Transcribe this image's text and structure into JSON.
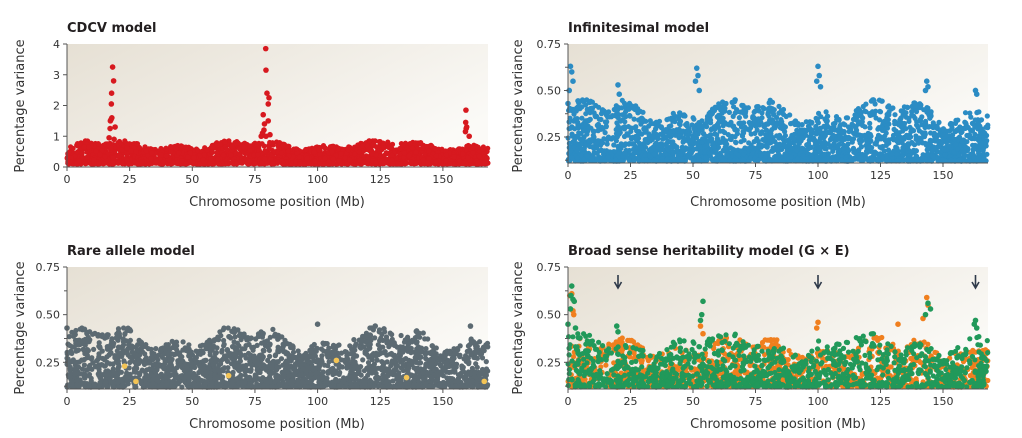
{
  "chart_data": [
    {
      "type": "scatter",
      "title": "CDCV model",
      "xlabel": "Chromosome position (Mb)",
      "ylabel": "Percentage variance",
      "xlim": [
        0,
        168
      ],
      "ylim": [
        0,
        4
      ],
      "xticks": [
        "0",
        "25",
        "50",
        "75",
        "100",
        "125",
        "150"
      ],
      "yticks": [
        "0",
        "1",
        "2",
        "3",
        "4"
      ],
      "grid": false,
      "series": [
        {
          "color": "#d7191f",
          "background_range": [
            0.1,
            0.85
          ],
          "peaks": [
            [
              16.8,
              0.95
            ],
            [
              17.2,
              1.25
            ],
            [
              17.3,
              1.5
            ],
            [
              17.6,
              1.55
            ],
            [
              17.9,
              1.6
            ],
            [
              17.7,
              2.05
            ],
            [
              17.8,
              2.4
            ],
            [
              18.2,
              3.25
            ],
            [
              18.6,
              2.8
            ],
            [
              19.2,
              1.3
            ],
            [
              18.8,
              0.9
            ],
            [
              77.5,
              1.0
            ],
            [
              78,
              1.1
            ],
            [
              78.6,
              1.2
            ],
            [
              78.8,
              1.4
            ],
            [
              78.3,
              1.7
            ],
            [
              79.4,
              1.0
            ],
            [
              80.3,
              1.5
            ],
            [
              80.3,
              2.05
            ],
            [
              80.6,
              2.25
            ],
            [
              79.8,
              2.4
            ],
            [
              79.4,
              3.15
            ],
            [
              79.3,
              3.85
            ],
            [
              81.0,
              1.05
            ],
            [
              159,
              1.15
            ],
            [
              159.3,
              1.25
            ],
            [
              159.5,
              1.3
            ],
            [
              159.1,
              1.45
            ],
            [
              159.2,
              1.85
            ],
            [
              160.5,
              1.0
            ]
          ]
        }
      ]
    },
    {
      "type": "scatter",
      "title": "Infinitesimal model",
      "xlabel": "Chromosome position (Mb)",
      "ylabel": "Percentage variance",
      "xlim": [
        0,
        168
      ],
      "ylim": [
        0.11,
        0.75
      ],
      "xticks": [
        "0",
        "25",
        "50",
        "75",
        "100",
        "125",
        "150"
      ],
      "yticks": [
        "0.25",
        "0.50",
        "0.75"
      ],
      "grid": false,
      "series": [
        {
          "color": "#2b8cc4",
          "background_range": [
            0.12,
            0.45
          ],
          "peaks": [
            [
              0.5,
              0.5
            ],
            [
              1,
              0.63
            ],
            [
              1.5,
              0.6
            ],
            [
              2,
              0.55
            ],
            [
              0,
              0.43
            ],
            [
              20,
              0.53
            ],
            [
              20.5,
              0.48
            ],
            [
              51.5,
              0.62
            ],
            [
              52,
              0.58
            ],
            [
              51,
              0.55
            ],
            [
              52.5,
              0.5
            ],
            [
              100,
              0.63
            ],
            [
              100.5,
              0.58
            ],
            [
              99.5,
              0.55
            ],
            [
              101,
              0.52
            ],
            [
              143.5,
              0.55
            ],
            [
              144,
              0.52
            ],
            [
              143,
              0.5
            ],
            [
              163,
              0.5
            ],
            [
              163.5,
              0.48
            ]
          ]
        }
      ]
    },
    {
      "type": "scatter",
      "title": "Rare allele model",
      "xlabel": "Chromosome position (Mb)",
      "ylabel": "Percentage variance",
      "xlim": [
        0,
        168
      ],
      "ylim": [
        0.11,
        0.75
      ],
      "xticks": [
        "0",
        "25",
        "50",
        "75",
        "100",
        "125",
        "150"
      ],
      "yticks": [
        "0.25",
        "0.50",
        "0.75"
      ],
      "grid": false,
      "series": [
        {
          "color": "#5c6a72",
          "background_range": [
            0.12,
            0.43
          ],
          "peaks": [
            [
              0,
              0.43
            ],
            [
              100,
              0.45
            ],
            [
              123,
              0.44
            ],
            [
              161,
              0.44
            ]
          ]
        },
        {
          "color": "#f4c455",
          "background_range": null,
          "peaks": [
            [
              23,
              0.23
            ],
            [
              27.5,
              0.15
            ],
            [
              64.5,
              0.18
            ],
            [
              107.5,
              0.26
            ],
            [
              135.5,
              0.17
            ],
            [
              166.5,
              0.15
            ]
          ]
        }
      ]
    },
    {
      "type": "scatter",
      "title": "Broad sense heritability model (G × E)",
      "xlabel": "Chromosome position (Mb)",
      "ylabel": "Percentage variance",
      "xlim": [
        0,
        168
      ],
      "ylim": [
        0.11,
        0.75
      ],
      "xticks": [
        "0",
        "25",
        "50",
        "75",
        "100",
        "125",
        "150"
      ],
      "yticks": [
        "0.25",
        "0.50",
        "0.75"
      ],
      "grid": false,
      "arrows_at": [
        20,
        100,
        163
      ],
      "series": [
        {
          "color": "#f07f1e",
          "background_range": [
            0.12,
            0.38
          ],
          "peaks": [
            [
              0.7,
              0.6
            ],
            [
              1.5,
              0.61
            ],
            [
              2,
              0.52
            ],
            [
              2.3,
              0.5
            ],
            [
              53,
              0.44
            ],
            [
              54,
              0.4
            ],
            [
              100,
              0.46
            ],
            [
              99.5,
              0.43
            ],
            [
              132,
              0.45
            ],
            [
              143.5,
              0.59
            ],
            [
              144,
              0.55
            ],
            [
              142,
              0.48
            ]
          ]
        },
        {
          "color": "#21995a",
          "background_range": [
            0.12,
            0.4
          ],
          "peaks": [
            [
              0,
              0.45
            ],
            [
              1,
              0.53
            ],
            [
              1.2,
              0.6
            ],
            [
              1.5,
              0.65
            ],
            [
              2,
              0.58
            ],
            [
              2.5,
              0.57
            ],
            [
              3,
              0.43
            ],
            [
              19.5,
              0.44
            ],
            [
              20,
              0.41
            ],
            [
              54,
              0.57
            ],
            [
              53.5,
              0.5
            ],
            [
              53,
              0.47
            ],
            [
              143,
              0.5
            ],
            [
              144,
              0.56
            ],
            [
              145,
              0.53
            ],
            [
              163,
              0.47
            ],
            [
              162.5,
              0.45
            ],
            [
              163.5,
              0.43
            ]
          ]
        }
      ]
    }
  ]
}
